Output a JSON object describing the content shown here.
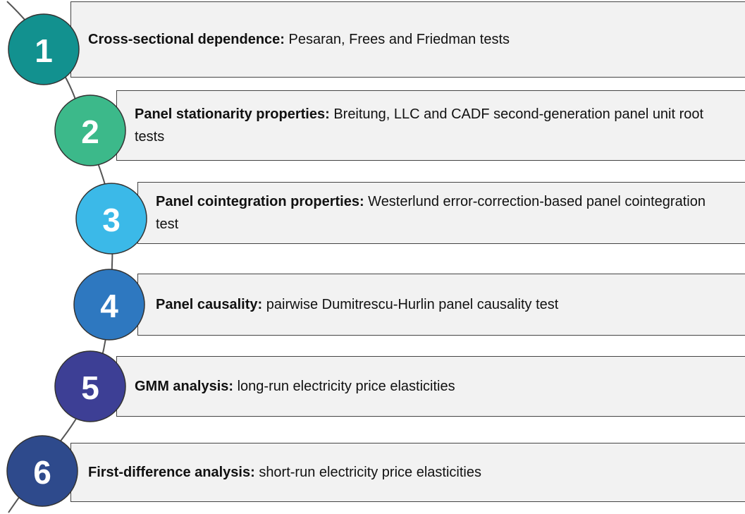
{
  "steps": [
    {
      "number": "1",
      "label": "Cross-sectional dependence:",
      "text": "Pesaran, Frees and Friedman tests"
    },
    {
      "number": "2",
      "label": "Panel stationarity properties:",
      "text": "Breitung, LLC and CADF second-generation panel unit root tests"
    },
    {
      "number": "3",
      "label": "Panel cointegration properties:",
      "text": "Westerlund error-correction-based panel cointegration test"
    },
    {
      "number": "4",
      "label": "Panel causality:",
      "text": "pairwise Dumitrescu-Hurlin panel causality test"
    },
    {
      "number": "5",
      "label": "GMM analysis:",
      "text": "long-run electricity price elasticities"
    },
    {
      "number": "6",
      "label": "First-difference analysis:",
      "text": "short-run electricity price elasticities"
    }
  ]
}
